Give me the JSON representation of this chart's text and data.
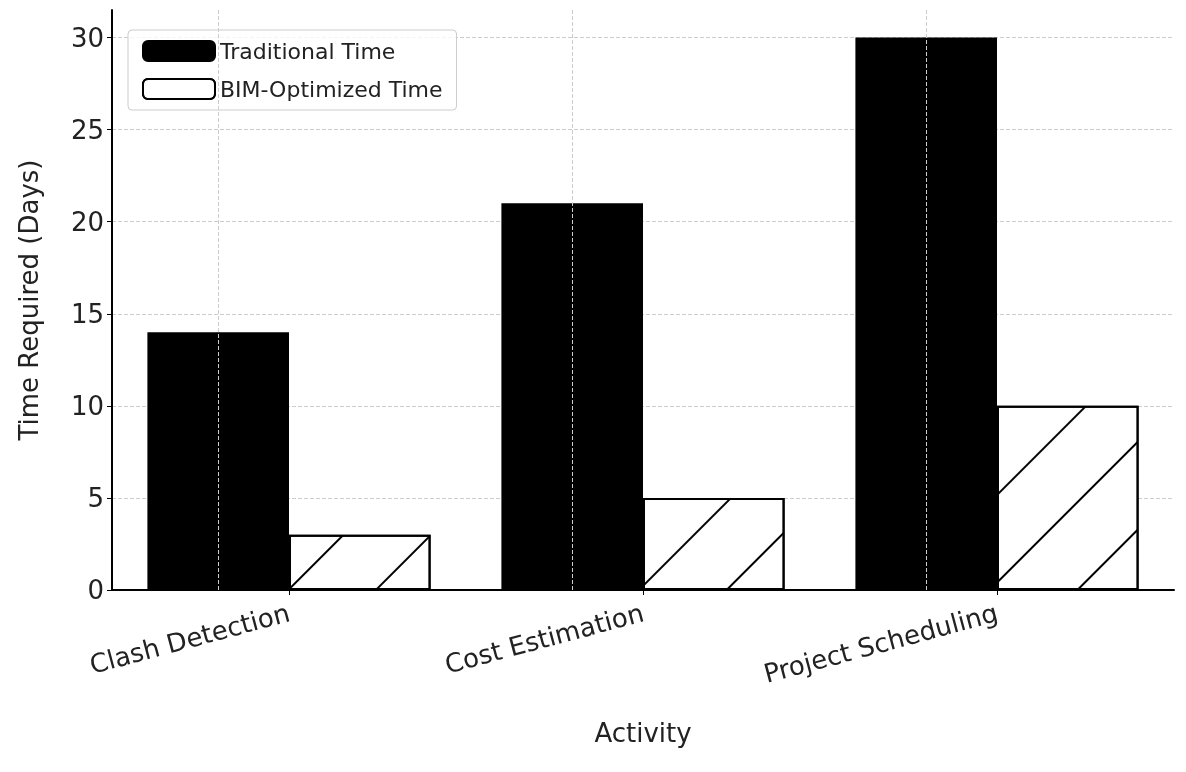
{
  "chart_data": {
    "type": "bar",
    "xlabel": "Activity",
    "ylabel": "Time Required (Days)",
    "categories": [
      "Clash Detection",
      "Cost Estimation",
      "Project Scheduling"
    ],
    "series": [
      {
        "name": "Traditional Time",
        "color": "#000000",
        "values": [
          14,
          21,
          30
        ]
      },
      {
        "name": "BIM-Optimized Time",
        "color": "#ffffff",
        "values": [
          3,
          5,
          10
        ]
      }
    ],
    "ylim": [
      0,
      31.5
    ],
    "yticks": [
      0,
      5,
      10,
      15,
      20,
      25,
      30
    ],
    "grid": true,
    "legend": "top left"
  }
}
